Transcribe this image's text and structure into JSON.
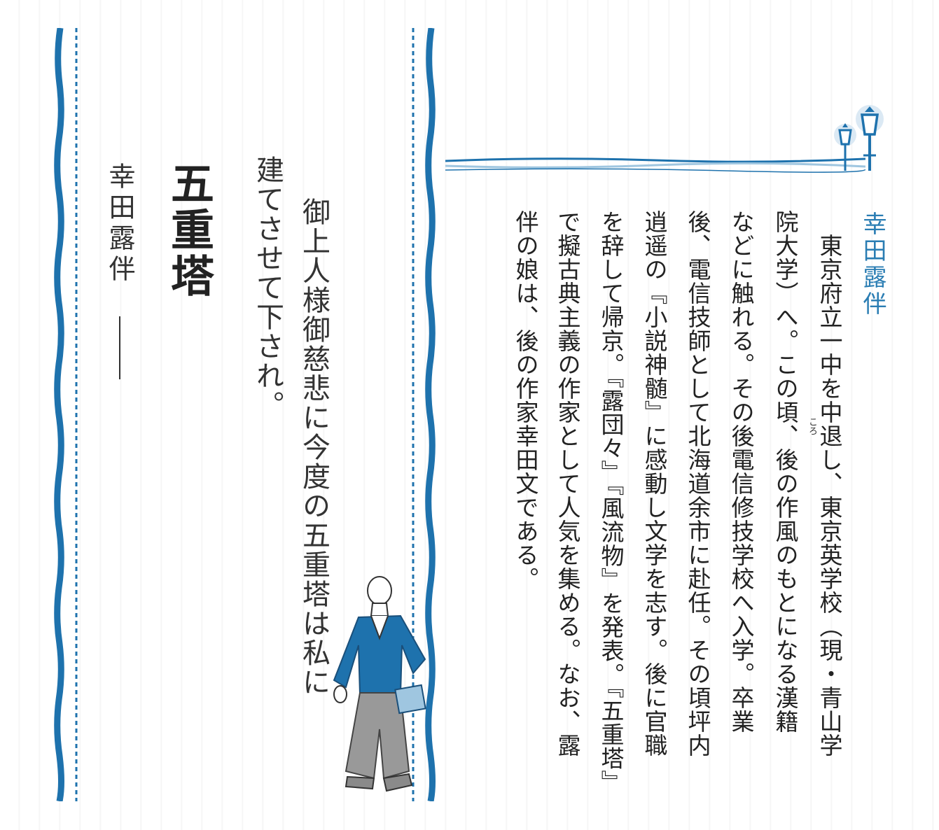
{
  "colors": {
    "accent": "#1e72ad",
    "light_accent": "#9fc6e0",
    "text": "#222222"
  },
  "quote": {
    "lines": [
      "御上人様御慈悲に今度の五重塔は私に",
      "建てさせて下され。"
    ]
  },
  "title": "五重塔",
  "author": {
    "name": "幸田露伴",
    "dash": "——"
  },
  "bio": {
    "heading": "幸田露伴",
    "lines": [
      "　東京府立一中を中退し、東京英学校（現・青山学",
      "院大学）へ。この頃、後の作風のもとになる漢籍",
      "などに触れる。その後電信修技学校へ入学。卒業",
      "後、電信技師として北海道余市に赴任。その頃坪内",
      "逍遥の『小説神髄』に感動し文学を志す。後に官職",
      "を辞して帰京。『露団々』『風流物』を発表。『五重塔』",
      "で擬古典主義の作家として人気を集める。なお、露",
      "伴の娘は、後の作家幸田文である。"
    ],
    "ruby": "ころ"
  },
  "icons": [
    "street-lamp-icon",
    "man-in-kimono-illustration"
  ]
}
